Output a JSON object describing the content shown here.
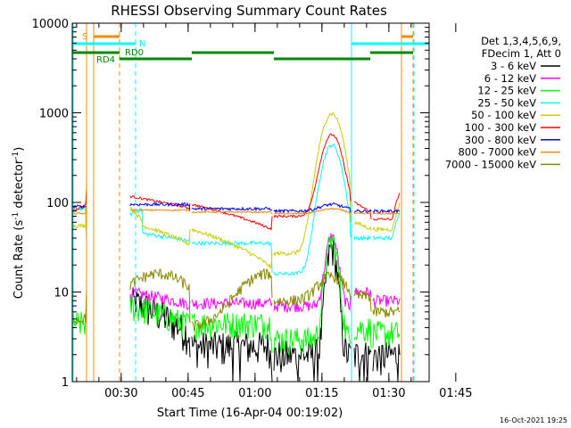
{
  "chart_data": {
    "type": "line",
    "title": "RHESSI Observing Summary Count Rates",
    "xlabel": "Start Time (16-Apr-04 00:19:02)",
    "ylabel_main": "Count Rate (s",
    "ylabel_sup1": "-1",
    "ylabel_mid": " detector",
    "ylabel_sup2": "-1",
    "ylabel_end": ")",
    "y_scale": "log",
    "ylim": [
      1,
      10000
    ],
    "xlim_minutes": [
      0,
      80
    ],
    "y_ticks": [
      {
        "value": 1,
        "label": "1"
      },
      {
        "value": 10,
        "label": "10"
      },
      {
        "value": 100,
        "label": "100"
      },
      {
        "value": 1000,
        "label": "1000"
      },
      {
        "value": 10000,
        "label": "10000"
      }
    ],
    "x_ticks": [
      {
        "minutes": 10.97,
        "label": "00:30"
      },
      {
        "minutes": 25.97,
        "label": "00:45"
      },
      {
        "minutes": 40.97,
        "label": "01:00"
      },
      {
        "minutes": 55.97,
        "label": "01:15"
      },
      {
        "minutes": 70.97,
        "label": "01:30"
      },
      {
        "minutes": 85.97,
        "label": "01:45"
      }
    ],
    "legend_header": [
      "Det 1,3,4,5,6,9,",
      "FDecim 1, Att 0"
    ],
    "series": [
      {
        "name": "3 - 6 keV",
        "color": "#000000",
        "profile": "black"
      },
      {
        "name": "6 - 12 keV",
        "color": "#ff00ff",
        "profile": "magenta"
      },
      {
        "name": "12 - 25 keV",
        "color": "#00ff00",
        "profile": "green"
      },
      {
        "name": "25 - 50 keV",
        "color": "#00ffff",
        "profile": "cyan"
      },
      {
        "name": "50 - 100 keV",
        "color": "#cccc00",
        "profile": "yellow"
      },
      {
        "name": "100 - 300 keV",
        "color": "#ff0000",
        "profile": "red"
      },
      {
        "name": "300 - 800 keV",
        "color": "#0000ff",
        "profile": "blue"
      },
      {
        "name": "800 - 7000 keV",
        "color": "#ff8800",
        "profile": "orange"
      },
      {
        "name": "7000 - 15000 keV",
        "color": "#888800",
        "profile": "olive"
      }
    ],
    "markers": {
      "saa_label": "S",
      "night_label": "N",
      "rd0_label": "RD0",
      "rd4_label": "RD4"
    },
    "timestamp": "16-Oct-2021 19:25"
  }
}
